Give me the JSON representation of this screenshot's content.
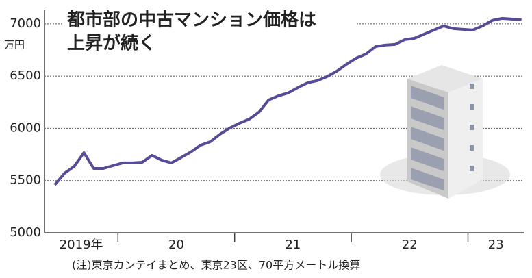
{
  "chart_data": {
    "type": "line",
    "title": [
      "都市部の中古マンション価格は",
      "上昇が続く"
    ],
    "y_unit": "万円",
    "note": "(注)東京カンテイまとめ、東京23区、70平方メートル換算",
    "categories": [
      null,
      null,
      null,
      null,
      null,
      null,
      null,
      null,
      null,
      null,
      null,
      null,
      null,
      null,
      null,
      null,
      null,
      null,
      null,
      null,
      null,
      null,
      null,
      null,
      null,
      null,
      null,
      null,
      null,
      null,
      null,
      null,
      null,
      null,
      null,
      null,
      null,
      null,
      null,
      null,
      null,
      null,
      null,
      null,
      null,
      null,
      null,
      null,
      null
    ],
    "x_groups": [
      "2019年",
      "20",
      "21",
      "22",
      "23"
    ],
    "series": [
      {
        "name": null,
        "color": "#564b96",
        "values": [
          5459,
          5570,
          5636,
          5767,
          5616,
          5616,
          5643,
          5669,
          5669,
          5675,
          5741,
          5695,
          5669,
          5721,
          5774,
          5839,
          5872,
          5944,
          6003,
          6049,
          6088,
          6154,
          6272,
          6311,
          6338,
          6390,
          6436,
          6456,
          6495,
          6547,
          6613,
          6672,
          6711,
          6783,
          6797,
          6803,
          6849,
          6862,
          6902,
          6941,
          6980,
          6954,
          6947,
          6941,
          6980,
          7033,
          7052,
          7046,
          7039
        ]
      }
    ],
    "ylim": [
      5000,
      7130
    ],
    "yticks": [
      5000,
      5500,
      6000,
      6500,
      7000
    ],
    "grid": true
  }
}
